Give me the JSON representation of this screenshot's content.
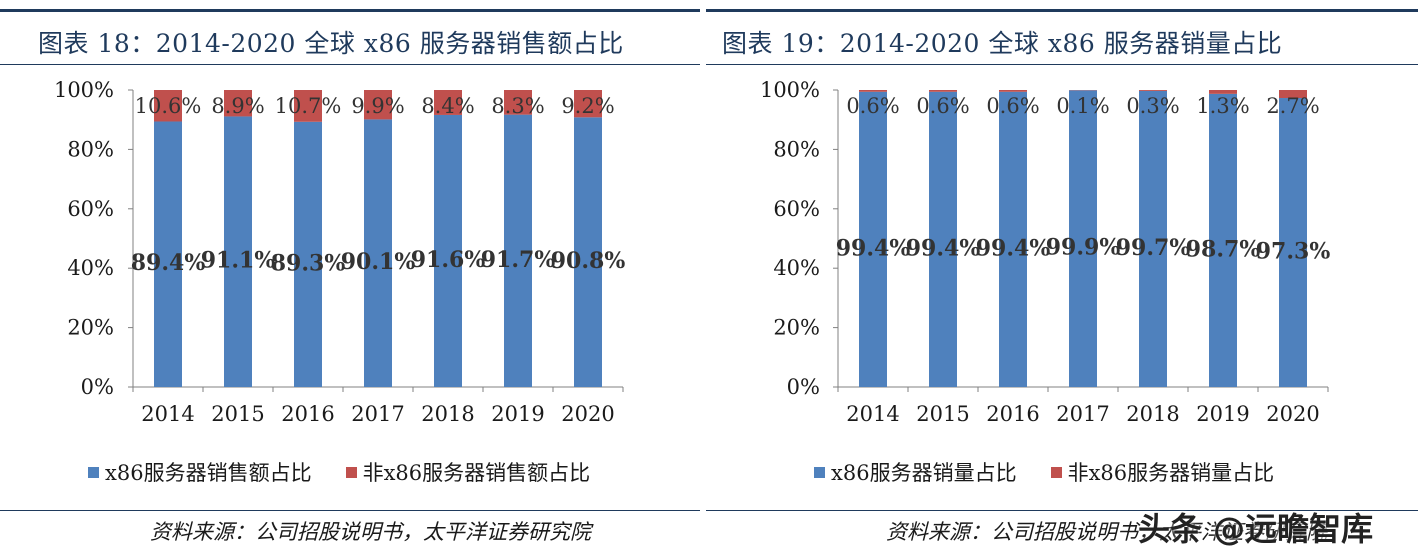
{
  "charts": [
    {
      "title": "图表 18：2014-2020 全球 x86 服务器销售额占比",
      "source": "资料来源：公司招股说明书，太平洋证券研究院",
      "legend": [
        "x86服务器销售额占比",
        "非x86服务器销售额占比"
      ]
    },
    {
      "title": "图表 19：2014-2020 全球 x86 服务器销量占比",
      "source": "资料来源：公司招股说明书，太平洋证券研究院",
      "legend": [
        "x86服务器销量占比",
        "非x86服务器销量占比"
      ]
    }
  ],
  "watermark": "头条 @远瞻智库",
  "colors": {
    "x86": "#4f81bd",
    "non_x86": "#c0504d",
    "axis": "#808080",
    "title": "#1f3a5c"
  },
  "chart_data": [
    {
      "type": "bar",
      "stacked": true,
      "title": "图表 18：2014-2020 全球 x86 服务器销售额占比",
      "categories": [
        "2014",
        "2015",
        "2016",
        "2017",
        "2018",
        "2019",
        "2020"
      ],
      "series": [
        {
          "name": "x86服务器销售额占比",
          "values": [
            89.4,
            91.1,
            89.3,
            90.1,
            91.6,
            91.7,
            90.8
          ],
          "labels": [
            "89.4%",
            "91.1%",
            "89.3%",
            "90.1%",
            "91.6%",
            "91.7%",
            "90.8%"
          ]
        },
        {
          "name": "非x86服务器销售额占比",
          "values": [
            10.6,
            8.9,
            10.7,
            9.9,
            8.4,
            8.3,
            9.2
          ],
          "labels": [
            "10.6%",
            "8.9%",
            "10.7%",
            "9.9%",
            "8.4%",
            "8.3%",
            "9.2%"
          ]
        }
      ],
      "yticks": [
        "0%",
        "20%",
        "40%",
        "60%",
        "80%",
        "100%"
      ],
      "ylim": [
        0,
        100
      ],
      "legend_position": "bottom"
    },
    {
      "type": "bar",
      "stacked": true,
      "title": "图表 19：2014-2020 全球 x86 服务器销量占比",
      "categories": [
        "2014",
        "2015",
        "2016",
        "2017",
        "2018",
        "2019",
        "2020"
      ],
      "series": [
        {
          "name": "x86服务器销量占比",
          "values": [
            99.4,
            99.4,
            99.4,
            99.9,
            99.7,
            98.7,
            97.3
          ],
          "labels": [
            "99.4%",
            "99.4%",
            "99.4%",
            "99.9%",
            "99.7%",
            "98.7%",
            "97.3%"
          ]
        },
        {
          "name": "非x86服务器销量占比",
          "values": [
            0.6,
            0.6,
            0.6,
            0.1,
            0.3,
            1.3,
            2.7
          ],
          "labels": [
            "0.6%",
            "0.6%",
            "0.6%",
            "0.1%",
            "0.3%",
            "1.3%",
            "2.7%"
          ]
        }
      ],
      "yticks": [
        "0%",
        "20%",
        "40%",
        "60%",
        "80%",
        "100%"
      ],
      "ylim": [
        0,
        100
      ],
      "legend_position": "bottom"
    }
  ]
}
